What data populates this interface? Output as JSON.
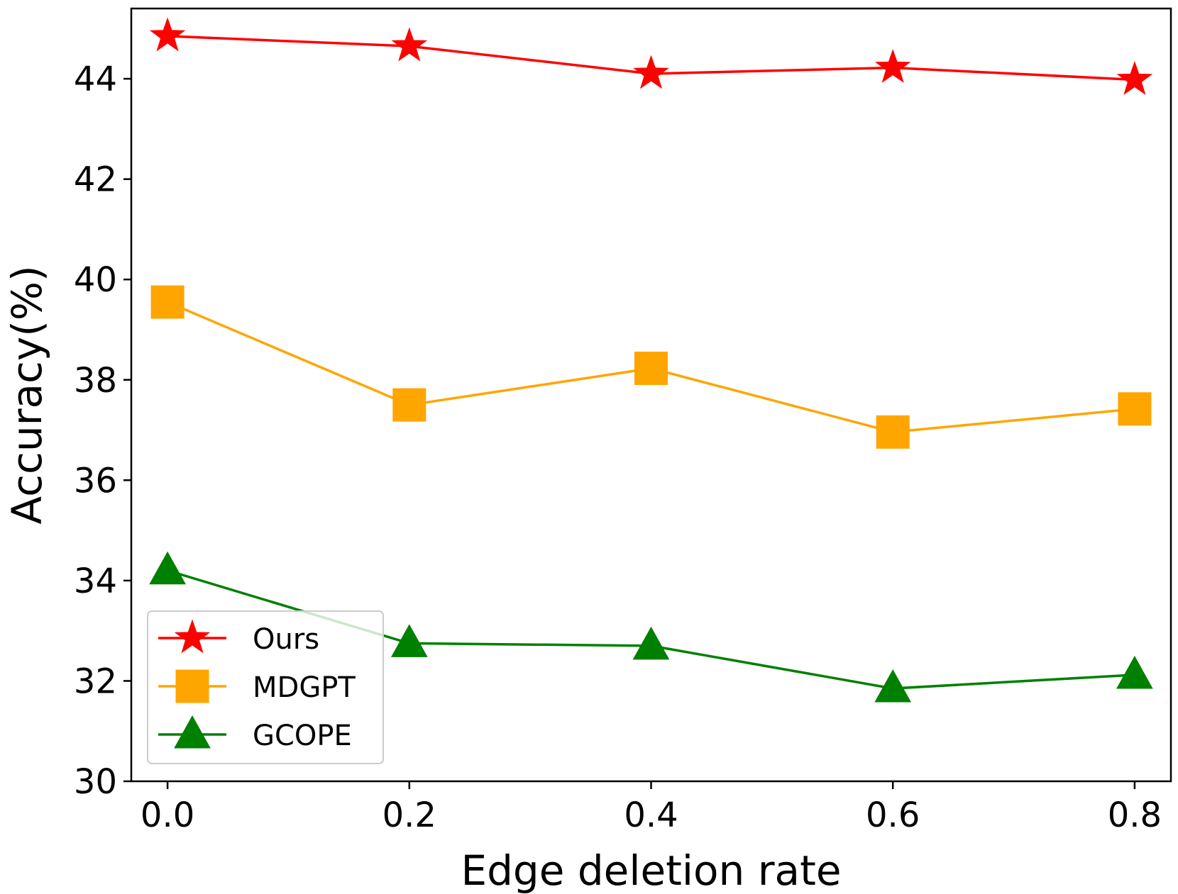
{
  "chart_data": {
    "type": "line",
    "title": "",
    "xlabel": "Edge deletion rate",
    "ylabel": "Accuracy(%)",
    "x": [
      0.0,
      0.2,
      0.4,
      0.6,
      0.8
    ],
    "xticks": [
      "0.0",
      "0.2",
      "0.4",
      "0.6",
      "0.8"
    ],
    "xlim": [
      -0.03,
      0.83
    ],
    "ylim": [
      30,
      45.4
    ],
    "yticks": [
      "30",
      "32",
      "34",
      "36",
      "38",
      "40",
      "42",
      "44"
    ],
    "grid": false,
    "legend_position": "bottom-left",
    "series": [
      {
        "name": "Ours",
        "color": "#ff0000",
        "marker": "star",
        "values": [
          44.85,
          44.65,
          44.1,
          44.22,
          43.98
        ]
      },
      {
        "name": "MDGPT",
        "color": "#ffa500",
        "marker": "square",
        "values": [
          39.55,
          37.5,
          38.23,
          36.96,
          37.42
        ]
      },
      {
        "name": "GCOPE",
        "color": "#008000",
        "marker": "triangle",
        "values": [
          34.2,
          32.75,
          32.7,
          31.85,
          32.12
        ]
      }
    ]
  }
}
